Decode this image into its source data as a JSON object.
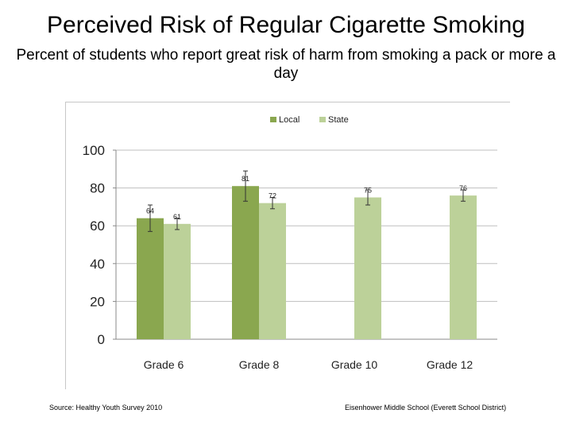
{
  "header": {
    "title": "Perceived Risk of Regular Cigarette Smoking",
    "subtitle": "Percent of students who report great risk of harm from smoking a pack or more a day"
  },
  "footer": {
    "source": "Source: Healthy Youth Survey 2010",
    "school": "Eisenhower Middle School (Everett School District)"
  },
  "chart_data": {
    "type": "bar",
    "categories": [
      "Grade 6",
      "Grade 8",
      "Grade 10",
      "Grade 12"
    ],
    "series": [
      {
        "name": "Local",
        "color": "#8aa74f",
        "values": [
          64,
          81,
          null,
          null
        ],
        "errors": [
          7,
          8,
          null,
          null
        ]
      },
      {
        "name": "State",
        "color": "#bcd199",
        "values": [
          61,
          72,
          75,
          76
        ],
        "errors": [
          3,
          3,
          4,
          3
        ]
      }
    ],
    "data_labels": [
      [
        "64",
        "81",
        "",
        ""
      ],
      [
        "61",
        "72",
        "75",
        "76"
      ]
    ],
    "ylim": [
      0,
      100
    ],
    "yticks": [
      0,
      20,
      40,
      60,
      80,
      100
    ],
    "grid": true,
    "legend": "top-center",
    "xlabel": "",
    "ylabel": ""
  }
}
